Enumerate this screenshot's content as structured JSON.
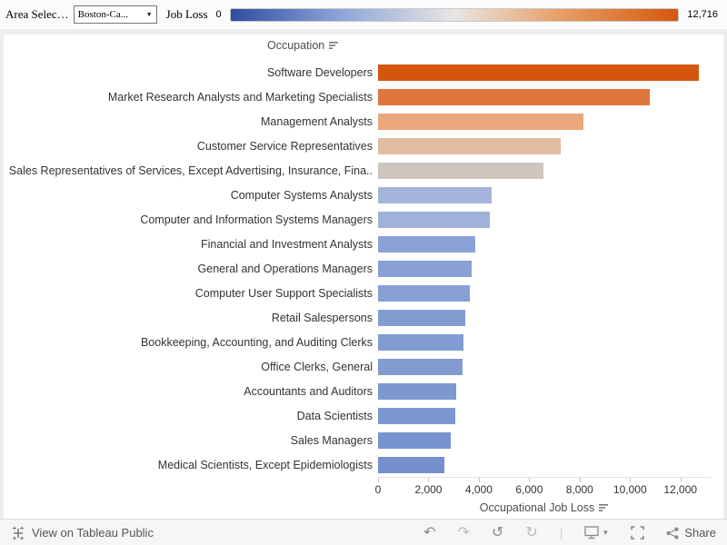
{
  "top_bar": {
    "area_filter": {
      "label": "Area Selec…",
      "value": "Boston-Ca...",
      "dropdown_arrow": "▼"
    },
    "legend": {
      "title": "Job Loss",
      "min_label": "0",
      "max_label": "12,716",
      "gradient_colors": [
        "#2e4da1",
        "#8fa7d8",
        "#e8e6e4",
        "#e79b61",
        "#d5570e"
      ]
    }
  },
  "chart_data": {
    "type": "bar",
    "orientation": "horizontal",
    "column_header": "Occupation",
    "xlabel": "Occupational Job Loss",
    "xlim": [
      0,
      13200
    ],
    "x_tick_labels": [
      "0",
      "2,000",
      "4,000",
      "6,000",
      "8,000",
      "10,000",
      "12,000"
    ],
    "x_tick_values": [
      0,
      2000,
      4000,
      6000,
      8000,
      10000,
      12000
    ],
    "legend_title": "Job Loss",
    "legend_range": [
      0,
      12716
    ],
    "categories": [
      "Software Developers",
      "Market Research Analysts and Marketing Specialists",
      "Management Analysts",
      "Customer Service Representatives",
      "Sales Representatives of Services, Except Advertising, Insurance, Fina..",
      "Computer Systems Analysts",
      "Computer and Information Systems Managers",
      "Financial and Investment Analysts",
      "General and Operations Managers",
      "Computer User Support Specialists",
      "Retail Salespersons",
      "Bookkeeping, Accounting, and Auditing Clerks",
      "Office Clerks, General",
      "Accountants and Auditors",
      "Data Scientists",
      "Sales Managers",
      "Medical Scientists, Except Epidemiologists"
    ],
    "values": [
      12716,
      10800,
      8150,
      7250,
      6550,
      4500,
      4450,
      3850,
      3700,
      3650,
      3450,
      3400,
      3350,
      3100,
      3050,
      2900,
      2650
    ],
    "colors": [
      "#d4560d",
      "#df763b",
      "#eaa67c",
      "#e2bca3",
      "#cdc6bf",
      "#a4b4db",
      "#a1b2d9",
      "#8ba3d4",
      "#88a0d3",
      "#879fd3",
      "#839cd1",
      "#829bd1",
      "#819ad0",
      "#7d97cf",
      "#7c96cf",
      "#7894ce",
      "#7590cc"
    ]
  },
  "footer": {
    "view_on_text": "View on Tableau Public",
    "share_label": "Share"
  }
}
